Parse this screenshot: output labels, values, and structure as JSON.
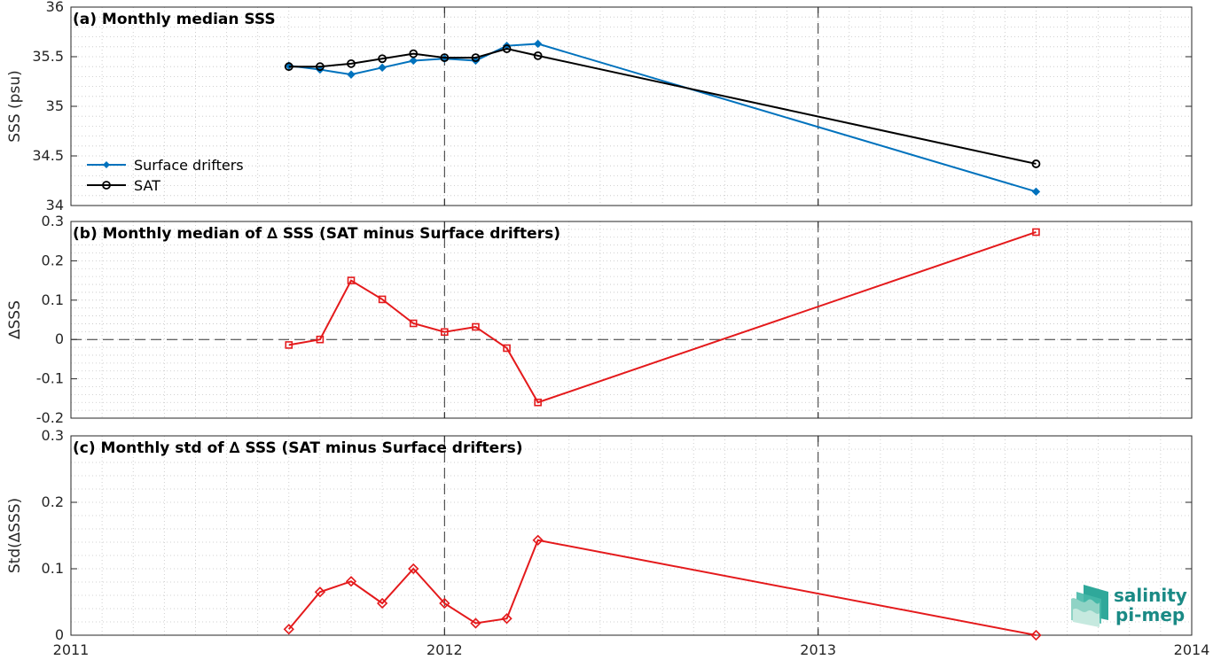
{
  "chart_data": [
    {
      "type": "line",
      "title": "(a) Monthly median SSS",
      "ylabel": "SSS (psu)",
      "xlim": [
        2011,
        2014
      ],
      "ylim": [
        34,
        36
      ],
      "yticks": [
        "34",
        "34.5",
        "35",
        "35.5",
        "36"
      ],
      "series": [
        {
          "name": "Surface drifters",
          "color": "#0072BD",
          "marker": "filled-diamond",
          "x": [
            "2011-08",
            "2011-09",
            "2011-10",
            "2011-11",
            "2011-12",
            "2012-01",
            "2012-02",
            "2012-03",
            "2012-04",
            "2013-08"
          ],
          "values": [
            35.41,
            35.37,
            35.32,
            35.39,
            35.46,
            35.48,
            35.46,
            35.61,
            35.63,
            34.14
          ]
        },
        {
          "name": "SAT",
          "color": "#000000",
          "marker": "open-circle",
          "x": [
            "2011-08",
            "2011-09",
            "2011-10",
            "2011-11",
            "2011-12",
            "2012-01",
            "2012-02",
            "2012-03",
            "2012-04",
            "2013-08"
          ],
          "values": [
            35.4,
            35.4,
            35.43,
            35.48,
            35.53,
            35.49,
            35.49,
            35.58,
            35.51,
            34.42
          ]
        }
      ],
      "legend": "bottom-left"
    },
    {
      "type": "line",
      "title": "(b) Monthly median of ∆ SSS (SAT minus Surface drifters)",
      "ylabel": "∆SSS",
      "xlim": [
        2011,
        2014
      ],
      "ylim": [
        -0.2,
        0.3
      ],
      "yticks": [
        "-0.2",
        "-0.1",
        "0",
        "0.1",
        "0.2",
        "0.3"
      ],
      "series": [
        {
          "color": "#e41a1c",
          "marker": "open-square",
          "x": [
            "2011-08",
            "2011-09",
            "2011-10",
            "2011-11",
            "2011-12",
            "2012-01",
            "2012-02",
            "2012-03",
            "2012-04",
            "2013-08"
          ],
          "values": [
            -0.014,
            0.0,
            0.15,
            0.102,
            0.041,
            0.019,
            0.032,
            -0.022,
            -0.16,
            0.273
          ]
        }
      ]
    },
    {
      "type": "line",
      "title": "(c) Monthly std of ∆ SSS (SAT minus Surface drifters)",
      "ylabel": "Std(∆SSS)",
      "xlim": [
        2011,
        2014
      ],
      "ylim": [
        0,
        0.3
      ],
      "yticks": [
        "0",
        "0.1",
        "0.2",
        "0.3"
      ],
      "xticks": [
        "2011",
        "2012",
        "2013",
        "2014"
      ],
      "series": [
        {
          "color": "#e41a1c",
          "marker": "open-diamond",
          "x": [
            "2011-08",
            "2011-09",
            "2011-10",
            "2011-11",
            "2011-12",
            "2012-01",
            "2012-02",
            "2012-03",
            "2012-04",
            "2013-08"
          ],
          "values": [
            0.009,
            0.065,
            0.081,
            0.048,
            0.1,
            0.048,
            0.018,
            0.025,
            0.143,
            0.0
          ]
        }
      ]
    }
  ],
  "logo": {
    "line1": "salinity",
    "line2": "pi-mep"
  }
}
